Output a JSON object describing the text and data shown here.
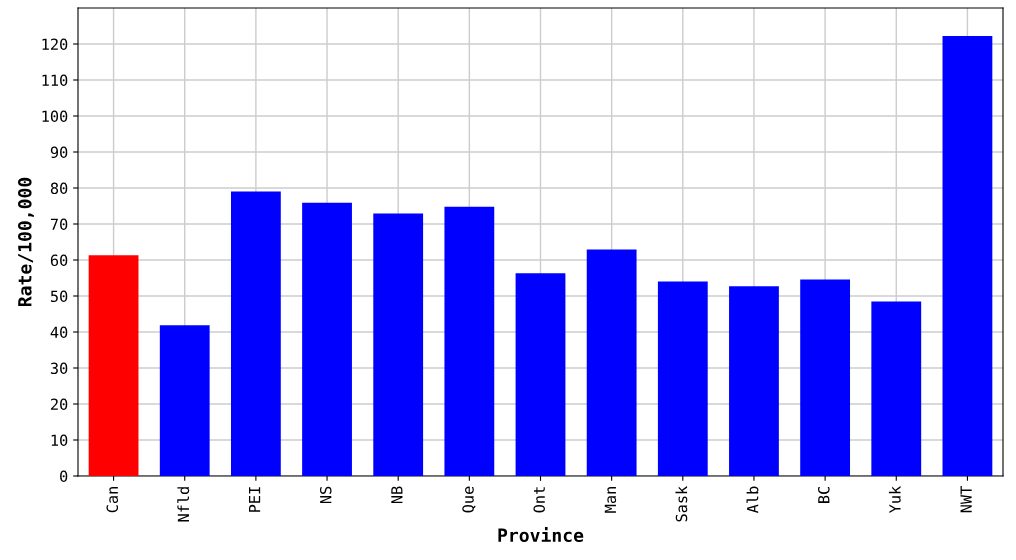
{
  "chart_data": {
    "type": "bar",
    "xlabel": "Province",
    "ylabel": "Rate/100,000",
    "categories": [
      "Can",
      "Nfld",
      "PEI",
      "NS",
      "NB",
      "Que",
      "Ont",
      "Man",
      "Sask",
      "Alb",
      "BC",
      "Yuk",
      "NWT"
    ],
    "values": [
      61.3,
      41.9,
      79.0,
      75.9,
      72.9,
      74.8,
      56.3,
      62.9,
      54.0,
      52.7,
      54.6,
      48.5,
      122.2
    ],
    "colors": [
      "#ff0000",
      "#0000ff",
      "#0000ff",
      "#0000ff",
      "#0000ff",
      "#0000ff",
      "#0000ff",
      "#0000ff",
      "#0000ff",
      "#0000ff",
      "#0000ff",
      "#0000ff",
      "#0000ff"
    ],
    "ylim": [
      0,
      130
    ],
    "yticks": [
      0,
      10,
      20,
      30,
      40,
      50,
      60,
      70,
      80,
      90,
      100,
      110,
      120
    ],
    "grid": true
  }
}
